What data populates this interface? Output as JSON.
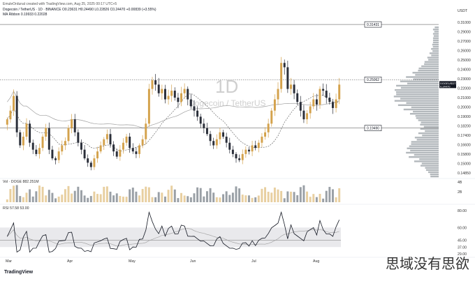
{
  "header": {
    "created_by": "EmuleOrdunal created with TradingView.com, Aug 25, 2025 00:17 UTC+5",
    "symbol_line": "Dogecoin / TetherUS · 1D · BINANCE  O0.23631 H0.24490 L0.22826 C0.24470 +0.00839 (+3.55%)",
    "ma_line": "MA Ribbon  0.19933  0.22028",
    "vol_line": "Vol · DOGE  882.251M",
    "rsi_line": "RSI  57.58  53.00"
  },
  "price_axis": {
    "unit": "USDT",
    "ticks": [
      "0.31000",
      "0.29000",
      "0.27000",
      "0.26000",
      "0.25000",
      "0.24000",
      "0.23000",
      "0.22000",
      "0.21000",
      "0.20000",
      "0.19000",
      "0.18200",
      "0.17400",
      "0.16600",
      "0.15800",
      "0.15000",
      "0.14850"
    ],
    "current_tag": "DOGEUSDT",
    "current_price": "0.24470"
  },
  "levels": [
    {
      "label": "0.31431"
    },
    {
      "label": "0.25062"
    },
    {
      "label": "0.19490"
    }
  ],
  "volume_axis": {
    "ticks": [
      "4B",
      "2B"
    ]
  },
  "rsi_axis": {
    "ticks": [
      "80.00",
      "60.00",
      "45.00",
      "37.00",
      "29.00"
    ]
  },
  "time_axis": {
    "labels": [
      "Mar",
      "Apr",
      "May",
      "Jun",
      "Jul",
      "Aug"
    ]
  },
  "watermark": {
    "big": "1D",
    "sub": "Dogecoin / TetherUS"
  },
  "footer": {
    "logo": "TradingView",
    "overlay": "思域没有思欲"
  },
  "colors": {
    "up": "#d4a24c",
    "down": "#2a2e39",
    "ma": "#9e9e9e",
    "rsi": "#131722",
    "rsi_ma": "#9e9e9e",
    "rsi_band": "#e9e9ec",
    "profile": "#9aa0a6"
  },
  "chart_data": {
    "type": "candlestick",
    "title": "Dogecoin / TetherUS · 1D · BINANCE",
    "ylabel": "USDT",
    "x": [
      "Mar",
      "Apr",
      "May",
      "Jun",
      "Jul",
      "Aug"
    ],
    "ylim": [
      0.14,
      0.32
    ],
    "closes": [
      0.205,
      0.215,
      0.232,
      0.19,
      0.175,
      0.185,
      0.2,
      0.178,
      0.17,
      0.165,
      0.172,
      0.185,
      0.195,
      0.17,
      0.16,
      0.158,
      0.168,
      0.175,
      0.18,
      0.195,
      0.205,
      0.19,
      0.178,
      0.17,
      0.16,
      0.155,
      0.15,
      0.16,
      0.168,
      0.175,
      0.182,
      0.188,
      0.176,
      0.168,
      0.162,
      0.17,
      0.178,
      0.185,
      0.172,
      0.168,
      0.165,
      0.175,
      0.182,
      0.2,
      0.24,
      0.25,
      0.245,
      0.235,
      0.24,
      0.228,
      0.232,
      0.238,
      0.23,
      0.225,
      0.235,
      0.24,
      0.228,
      0.22,
      0.215,
      0.208,
      0.2,
      0.195,
      0.188,
      0.18,
      0.175,
      0.182,
      0.19,
      0.185,
      0.178,
      0.17,
      0.165,
      0.16,
      0.158,
      0.165,
      0.17,
      0.168,
      0.175,
      0.172,
      0.178,
      0.185,
      0.19,
      0.2,
      0.215,
      0.228,
      0.24,
      0.27,
      0.265,
      0.24,
      0.245,
      0.235,
      0.225,
      0.215,
      0.205,
      0.212,
      0.22,
      0.228,
      0.222,
      0.24,
      0.238,
      0.23,
      0.225,
      0.218,
      0.228,
      0.245
    ],
    "levels": [
      0.31431,
      0.25062,
      0.1949
    ],
    "ma_ribbon": [
      0.19933,
      0.22028
    ],
    "volume": {
      "last": "882.251M"
    },
    "rsi": {
      "value": 57.58,
      "ma": 53.0,
      "band": [
        37.0,
        60.0
      ],
      "ylim": [
        29,
        80
      ]
    }
  }
}
